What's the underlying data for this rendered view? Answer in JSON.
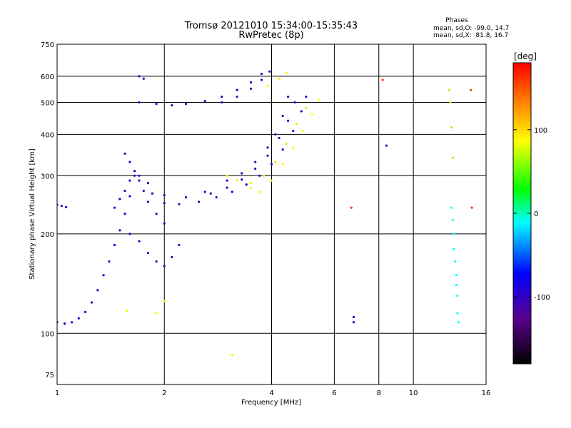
{
  "chart_data": {
    "type": "scatter",
    "title": "Tromsø 20121010 15:34:00-15:35:43",
    "subtitle": "RwPretec (8p)",
    "xlabel": "Frequency [MHz]",
    "ylabel": "Stationary phase Virtual Height [km]",
    "x_scale": "log",
    "y_scale": "log",
    "xlim": [
      1,
      16
    ],
    "ylim": [
      70,
      750
    ],
    "x_ticks": [
      1,
      2,
      4,
      6,
      8,
      10,
      16
    ],
    "y_ticks": [
      75,
      100,
      200,
      300,
      400,
      500,
      600,
      750
    ],
    "grid": true,
    "phase_box": {
      "title": "Phases",
      "line_o": "mean, sd,O: -99.0, 14.7",
      "line_x": "mean, sd,X:  81.8, 16.7"
    },
    "colorbar": {
      "label": "[deg]",
      "ticks": [
        100,
        0,
        -100
      ],
      "range": [
        -180,
        180
      ],
      "colors": [
        "#000000",
        "#5a008c",
        "#0000ff",
        "#00ffff",
        "#00ff00",
        "#ffff00",
        "#ff0000"
      ]
    },
    "traces": [
      {
        "name": "",
        "phase": -95,
        "points": [
          [
            1.0,
            108
          ],
          [
            1.05,
            107
          ],
          [
            1.1,
            108
          ],
          [
            1.15,
            111
          ],
          [
            1.2,
            116
          ],
          [
            1.25,
            124
          ],
          [
            1.3,
            135
          ],
          [
            1.35,
            150
          ],
          [
            1.4,
            165
          ],
          [
            1.45,
            185
          ],
          [
            1.5,
            205
          ],
          [
            1.55,
            230
          ],
          [
            1.6,
            260
          ],
          [
            1.65,
            300
          ]
        ]
      },
      {
        "name": "",
        "phase": -100,
        "points": [
          [
            1.0,
            245
          ],
          [
            1.03,
            243
          ],
          [
            1.06,
            241
          ]
        ]
      },
      {
        "name": "",
        "phase": -100,
        "points": [
          [
            1.55,
            350
          ],
          [
            1.7,
            300
          ],
          [
            1.85,
            265
          ],
          [
            2.0,
            248
          ],
          [
            2.2,
            246
          ],
          [
            2.5,
            250
          ],
          [
            2.8,
            258
          ],
          [
            3.1,
            268
          ],
          [
            3.4,
            282
          ],
          [
            3.7,
            300
          ],
          [
            4.0,
            325
          ],
          [
            4.3,
            360
          ],
          [
            4.6,
            410
          ],
          [
            4.85,
            470
          ],
          [
            5.0,
            520
          ]
        ]
      },
      {
        "name": "",
        "phase": -105,
        "points": [
          [
            1.6,
            330
          ],
          [
            1.8,
            285
          ],
          [
            2.0,
            262
          ],
          [
            2.3,
            258
          ],
          [
            2.7,
            265
          ],
          [
            3.0,
            276
          ],
          [
            3.3,
            292
          ],
          [
            3.6,
            315
          ],
          [
            3.9,
            345
          ],
          [
            4.2,
            390
          ],
          [
            4.45,
            440
          ],
          [
            4.65,
            500
          ]
        ]
      },
      {
        "name": "",
        "phase": -110,
        "points": [
          [
            2.6,
            268
          ],
          [
            3.0,
            290
          ],
          [
            3.3,
            305
          ],
          [
            3.6,
            330
          ],
          [
            3.9,
            365
          ],
          [
            4.1,
            400
          ],
          [
            4.3,
            455
          ],
          [
            4.45,
            520
          ]
        ]
      },
      {
        "name": "",
        "phase": 85,
        "points": [
          [
            3.7,
            268
          ],
          [
            4.0,
            290
          ],
          [
            4.3,
            325
          ],
          [
            4.6,
            365
          ],
          [
            4.9,
            410
          ],
          [
            5.2,
            460
          ],
          [
            5.45,
            510
          ]
        ]
      },
      {
        "name": "",
        "phase": 95,
        "points": [
          [
            3.5,
            275
          ],
          [
            3.8,
            300
          ],
          [
            4.1,
            330
          ],
          [
            4.4,
            375
          ],
          [
            4.7,
            430
          ],
          [
            5.0,
            480
          ]
        ]
      },
      {
        "name": "",
        "phase": 90,
        "points": [
          [
            3.0,
            300
          ],
          [
            3.2,
            290
          ],
          [
            3.5,
            285
          ]
        ]
      },
      {
        "name": "",
        "phase": -100,
        "points": [
          [
            1.7,
            500
          ],
          [
            1.9,
            495
          ],
          [
            2.1,
            490
          ],
          [
            2.3,
            495
          ],
          [
            2.6,
            505
          ],
          [
            2.9,
            520
          ],
          [
            3.2,
            545
          ],
          [
            3.5,
            575
          ],
          [
            3.75,
            610
          ]
        ]
      },
      {
        "name": "",
        "phase": -112,
        "points": [
          [
            2.9,
            500
          ],
          [
            3.2,
            520
          ],
          [
            3.5,
            550
          ],
          [
            3.75,
            585
          ],
          [
            3.95,
            620
          ]
        ]
      },
      {
        "name": "",
        "phase": 90,
        "points": [
          [
            3.9,
            560
          ],
          [
            4.2,
            590
          ],
          [
            4.4,
            615
          ]
        ]
      },
      {
        "name": "",
        "phase": -100,
        "points": [
          [
            1.7,
            600
          ],
          [
            1.75,
            590
          ]
        ]
      },
      {
        "name": "",
        "phase": -100,
        "points": [
          [
            1.45,
            240
          ],
          [
            1.5,
            255
          ],
          [
            1.55,
            270
          ],
          [
            1.6,
            290
          ],
          [
            1.65,
            310
          ],
          [
            1.7,
            290
          ],
          [
            1.75,
            270
          ],
          [
            1.8,
            250
          ],
          [
            1.9,
            230
          ],
          [
            2.0,
            215
          ]
        ]
      },
      {
        "name": "",
        "phase": -100,
        "points": [
          [
            1.6,
            200
          ],
          [
            1.7,
            190
          ],
          [
            1.8,
            175
          ],
          [
            1.9,
            165
          ],
          [
            2.0,
            160
          ],
          [
            2.1,
            170
          ],
          [
            2.2,
            185
          ]
        ]
      },
      {
        "name": "",
        "phase": 60,
        "points": [
          [
            12.6,
            545
          ],
          [
            12.7,
            500
          ],
          [
            12.8,
            420
          ],
          [
            12.9,
            340
          ]
        ]
      },
      {
        "name": "",
        "phase": -20,
        "points": [
          [
            12.8,
            240
          ],
          [
            12.9,
            220
          ],
          [
            13.0,
            200
          ],
          [
            13.0,
            180
          ],
          [
            13.1,
            165
          ],
          [
            13.2,
            150
          ],
          [
            13.2,
            140
          ],
          [
            13.3,
            130
          ],
          [
            13.3,
            115
          ],
          [
            13.4,
            108
          ]
        ]
      },
      {
        "name": "",
        "phase": 160,
        "points": [
          [
            6.7,
            240
          ],
          [
            8.2,
            585
          ],
          [
            14.5,
            545
          ],
          [
            14.6,
            240
          ]
        ]
      },
      {
        "name": "",
        "phase": -100,
        "points": [
          [
            6.8,
            112
          ],
          [
            6.8,
            108
          ],
          [
            8.4,
            370
          ]
        ]
      },
      {
        "name": "",
        "phase": 80,
        "points": [
          [
            1.9,
            115
          ],
          [
            2.0,
            125
          ],
          [
            3.1,
            86
          ],
          [
            1.57,
            117
          ]
        ]
      }
    ]
  }
}
